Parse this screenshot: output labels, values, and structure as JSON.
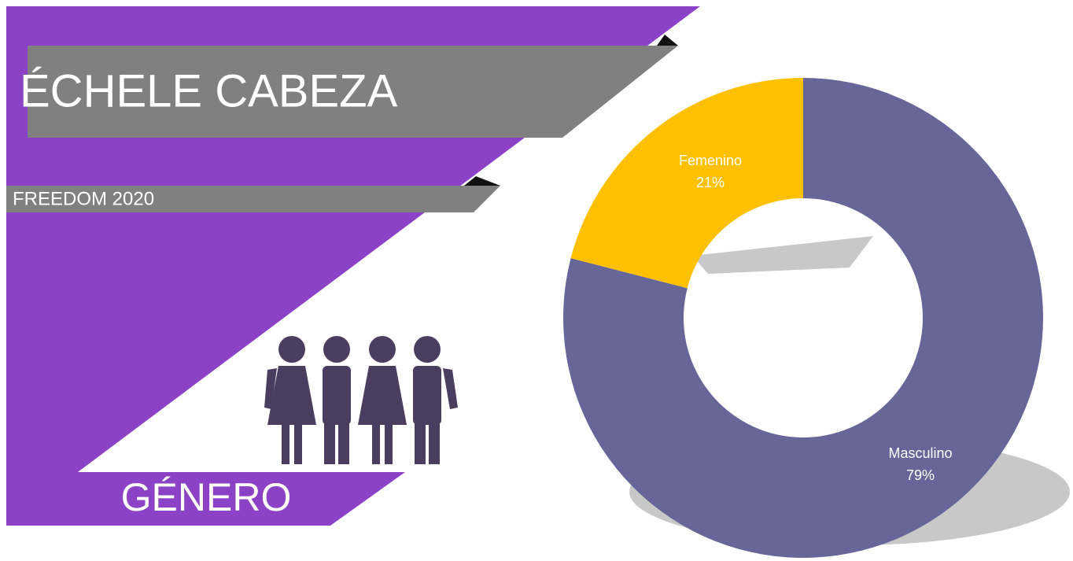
{
  "chart_data": {
    "type": "donut",
    "title": "ÉCHELE CABEZA",
    "subtitle": "FREEDOM 2020",
    "label": "GÉNERO",
    "categories": [
      "Masculino",
      "Femenino"
    ],
    "values": [
      79,
      21
    ],
    "value_labels": [
      "79%",
      "21%"
    ],
    "colors": [
      "#666699",
      "#FFC000"
    ]
  }
}
